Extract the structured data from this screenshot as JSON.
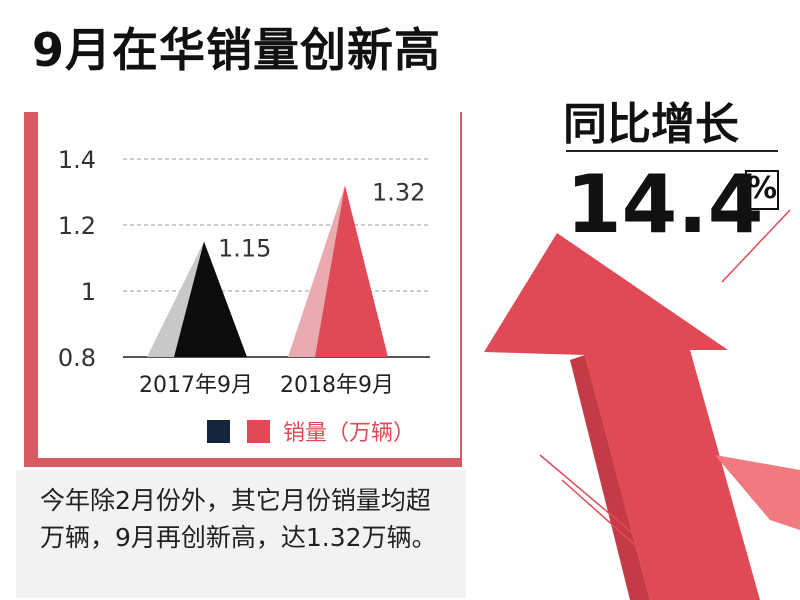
{
  "title": "9月在华销量创新高",
  "yoy": {
    "label": "同比增长",
    "value": "14.4",
    "unit": "%"
  },
  "caption": "今年除2月份外，其它月份销量均超万辆，9月再创新高，达1.32万辆。",
  "colors": {
    "accent": "#e04a56",
    "accent_light": "#e9aab0",
    "dark": "#0c0c0c",
    "grey": "#c8c8c8",
    "legend_dark": "#13253a",
    "grid": "#999999"
  },
  "chart_data": {
    "type": "bar",
    "categories": [
      "2017年9月",
      "2018年9月"
    ],
    "values": [
      1.15,
      1.32
    ],
    "value_labels": [
      "1.15",
      "1.32"
    ],
    "yticks": [
      "0.8",
      "1",
      "1.2",
      "1.4"
    ],
    "ylim": [
      0.8,
      1.4
    ],
    "legend": "销量（万辆）",
    "grid": true,
    "legend_position": "bottom-right"
  }
}
